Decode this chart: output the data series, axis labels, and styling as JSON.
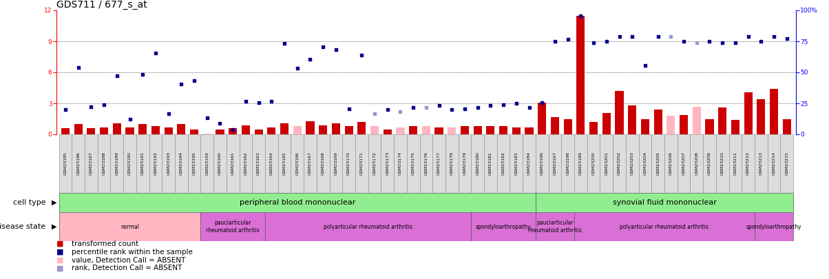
{
  "title": "GDS711 / 677_s_at",
  "samples": [
    "GSM23185",
    "GSM23186",
    "GSM23187",
    "GSM23188",
    "GSM23189",
    "GSM23190",
    "GSM23191",
    "GSM23192",
    "GSM23193",
    "GSM23194",
    "GSM23195",
    "GSM23159",
    "GSM23160",
    "GSM23161",
    "GSM23162",
    "GSM23163",
    "GSM23164",
    "GSM23165",
    "GSM23166",
    "GSM23167",
    "GSM23168",
    "GSM23169",
    "GSM23170",
    "GSM23171",
    "GSM23172",
    "GSM23173",
    "GSM23174",
    "GSM23175",
    "GSM23176",
    "GSM23177",
    "GSM23178",
    "GSM23179",
    "GSM23180",
    "GSM23181",
    "GSM23182",
    "GSM23183",
    "GSM23184",
    "GSM23196",
    "GSM23197",
    "GSM23198",
    "GSM23199",
    "GSM23200",
    "GSM23201",
    "GSM23202",
    "GSM23203",
    "GSM23204",
    "GSM23205",
    "GSM23206",
    "GSM23207",
    "GSM23208",
    "GSM23209",
    "GSM23210",
    "GSM23211",
    "GSM23212",
    "GSM23213",
    "GSM23214",
    "GSM23215"
  ],
  "bar_values": [
    0.6,
    1.0,
    0.6,
    0.7,
    1.1,
    0.7,
    1.0,
    0.8,
    0.7,
    1.0,
    0.5,
    0.1,
    0.5,
    0.6,
    0.9,
    0.5,
    0.7,
    1.1,
    0.8,
    1.3,
    0.9,
    1.1,
    0.8,
    1.2,
    0.8,
    0.5,
    0.7,
    0.8,
    0.8,
    0.7,
    0.7,
    0.8,
    0.8,
    0.8,
    0.8,
    0.7,
    0.7,
    3.1,
    1.7,
    1.5,
    11.5,
    1.2,
    2.1,
    4.2,
    2.8,
    1.5,
    2.4,
    1.8,
    1.9,
    2.7,
    1.5,
    2.6,
    1.4,
    4.1,
    3.4,
    4.4,
    1.5
  ],
  "bar_absent": [
    false,
    false,
    false,
    false,
    false,
    false,
    false,
    false,
    false,
    false,
    false,
    true,
    false,
    false,
    false,
    false,
    false,
    false,
    true,
    false,
    false,
    false,
    false,
    false,
    true,
    false,
    true,
    false,
    true,
    false,
    true,
    false,
    false,
    false,
    false,
    false,
    false,
    false,
    false,
    false,
    false,
    false,
    false,
    false,
    false,
    false,
    false,
    true,
    false,
    true,
    false,
    false,
    false,
    false,
    false,
    false,
    false
  ],
  "rank_values": [
    2.4,
    6.5,
    2.7,
    2.9,
    5.7,
    1.5,
    5.8,
    7.9,
    2.0,
    4.9,
    5.2,
    1.6,
    1.1,
    0.5,
    3.2,
    3.1,
    3.2,
    8.8,
    6.4,
    7.3,
    8.5,
    8.2,
    2.5,
    7.7,
    2.0,
    2.4,
    2.2,
    2.6,
    2.6,
    2.8,
    2.4,
    2.5,
    2.6,
    2.8,
    2.9,
    3.0,
    2.6,
    3.1,
    9.0,
    9.2,
    11.5,
    8.9,
    9.0,
    9.5,
    9.5,
    6.7,
    9.5,
    9.5,
    9.0,
    8.9,
    9.0,
    8.9,
    8.9,
    9.5,
    9.0,
    9.5,
    9.3
  ],
  "rank_absent": [
    false,
    false,
    false,
    false,
    false,
    false,
    false,
    false,
    false,
    false,
    false,
    false,
    false,
    false,
    false,
    false,
    false,
    false,
    false,
    false,
    false,
    false,
    false,
    false,
    true,
    false,
    true,
    false,
    true,
    false,
    false,
    false,
    false,
    false,
    false,
    false,
    false,
    false,
    false,
    false,
    false,
    false,
    false,
    false,
    false,
    false,
    false,
    true,
    false,
    true,
    false,
    false,
    false,
    false,
    false,
    false,
    false
  ],
  "cell_type_groups": [
    {
      "label": "peripheral blood mononuclear",
      "start": 0,
      "end": 37,
      "color": "#90EE90"
    },
    {
      "label": "synovial fluid mononuclear",
      "start": 37,
      "end": 57,
      "color": "#90EE90"
    }
  ],
  "disease_groups": [
    {
      "label": "normal",
      "start": 0,
      "end": 11,
      "color": "#FFB6C1"
    },
    {
      "label": "pauciarticular\nrheumatoid arthritis",
      "start": 11,
      "end": 16,
      "color": "#DA70D6"
    },
    {
      "label": "polyarticular rheumatoid arthritis",
      "start": 16,
      "end": 32,
      "color": "#DA70D6"
    },
    {
      "label": "spondyloarthropathy",
      "start": 32,
      "end": 37,
      "color": "#DA70D6"
    },
    {
      "label": "pauciarticular\nrheumatoid arthritis",
      "start": 37,
      "end": 40,
      "color": "#DA70D6"
    },
    {
      "label": "polyarticular rheumatoid arthritis",
      "start": 40,
      "end": 54,
      "color": "#DA70D6"
    },
    {
      "label": "spondyloarthropathy",
      "start": 54,
      "end": 57,
      "color": "#DA70D6"
    }
  ],
  "ylim_left": [
    0,
    12
  ],
  "ylim_right": [
    0,
    100
  ],
  "yticks_left": [
    0,
    3,
    6,
    9,
    12
  ],
  "yticks_right": [
    0,
    25,
    50,
    75,
    100
  ],
  "right_tick_labels": [
    "0",
    "25",
    "50",
    "75",
    "100%"
  ],
  "bar_color_present": "#CC0000",
  "bar_color_absent": "#FFB6C1",
  "rank_color_present": "#00008B",
  "rank_color_absent": "#9999CC",
  "title_fontsize": 10,
  "tick_fontsize": 6.5,
  "sample_fontsize": 4.5,
  "row_label_fontsize": 8,
  "annot_fontsize": 8,
  "legend_fontsize": 7.5,
  "legend_items": [
    {
      "color": "#CC0000",
      "label": "transformed count"
    },
    {
      "color": "#00008B",
      "label": "percentile rank within the sample"
    },
    {
      "color": "#FFB6C1",
      "label": "value, Detection Call = ABSENT"
    },
    {
      "color": "#9999CC",
      "label": "rank, Detection Call = ABSENT"
    }
  ]
}
